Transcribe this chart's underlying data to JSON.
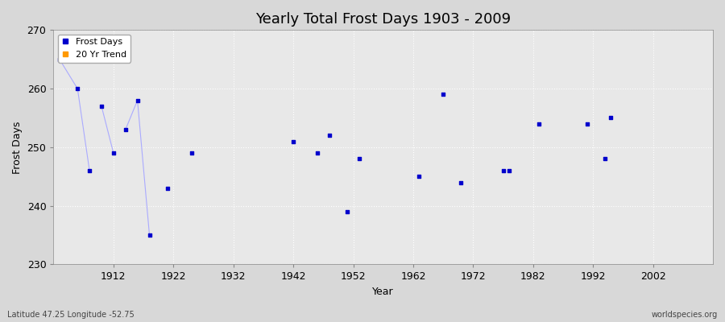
{
  "title": "Yearly Total Frost Days 1903 - 2009",
  "xlabel": "Year",
  "ylabel": "Frost Days",
  "xlim": [
    1902,
    2012
  ],
  "ylim": [
    230,
    270
  ],
  "yticks": [
    230,
    240,
    250,
    260,
    270
  ],
  "xticks": [
    1912,
    1922,
    1932,
    1942,
    1952,
    1962,
    1972,
    1982,
    1992,
    2002
  ],
  "bg_color": "#d8d8d8",
  "plot_bg_color": "#e8e8e8",
  "grid_color": "#ffffff",
  "scatter_color": "#0000cc",
  "line_color": "#aaaaff",
  "frost_days_label": "Frost Days",
  "trend_label": "20 Yr Trend",
  "trend_color": "#ff9900",
  "scatter_marker": "s",
  "scatter_size": 6,
  "data_points": [
    [
      1903,
      265
    ],
    [
      1906,
      260
    ],
    [
      1908,
      246
    ],
    [
      1910,
      257
    ],
    [
      1912,
      249
    ],
    [
      1914,
      253
    ],
    [
      1916,
      258
    ],
    [
      1918,
      235
    ],
    [
      1921,
      243
    ],
    [
      1925,
      249
    ],
    [
      1942,
      251
    ],
    [
      1946,
      249
    ],
    [
      1948,
      252
    ],
    [
      1951,
      239
    ],
    [
      1953,
      248
    ],
    [
      1963,
      245
    ],
    [
      1967,
      259
    ],
    [
      1970,
      244
    ],
    [
      1977,
      246
    ],
    [
      1978,
      246
    ],
    [
      1983,
      254
    ],
    [
      1991,
      254
    ],
    [
      1994,
      248
    ],
    [
      1995,
      255
    ]
  ],
  "line_segments": [
    [
      [
        1903,
        265
      ],
      [
        1906,
        260
      ]
    ],
    [
      [
        1906,
        260
      ],
      [
        1908,
        246
      ]
    ],
    [
      [
        1910,
        257
      ],
      [
        1912,
        249
      ]
    ],
    [
      [
        1914,
        253
      ],
      [
        1916,
        258
      ]
    ],
    [
      [
        1916,
        258
      ],
      [
        1918,
        235
      ]
    ]
  ],
  "footnote_left": "Latitude 47.25 Longitude -52.75",
  "footnote_right": "worldspecies.org",
  "title_fontsize": 13,
  "axis_fontsize": 9,
  "tick_fontsize": 9,
  "legend_fontsize": 8
}
